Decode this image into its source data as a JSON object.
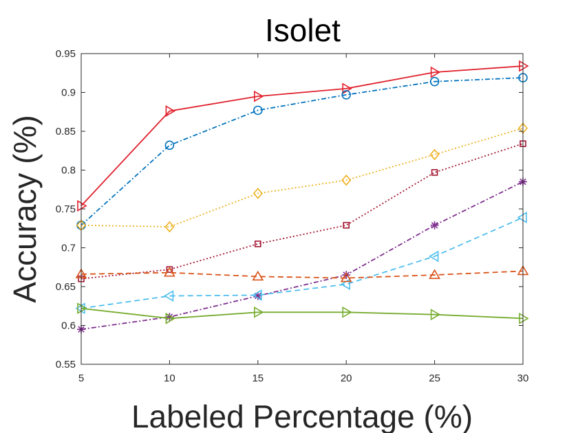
{
  "chart_data": {
    "type": "line",
    "title": "Isolet",
    "xlabel": "Labeled Percentage (%)",
    "ylabel": "Accuracy (%)",
    "x": [
      5,
      10,
      15,
      20,
      25,
      30
    ],
    "xlim": [
      5,
      30
    ],
    "ylim": [
      0.55,
      0.95
    ],
    "xticks": [
      "5",
      "10",
      "15",
      "20",
      "25",
      "30"
    ],
    "yticks": [
      "0.55",
      "0.6",
      "0.65",
      "0.7",
      "0.75",
      "0.8",
      "0.85",
      "0.9",
      "0.95"
    ],
    "grid": false,
    "legend": "none",
    "series": [
      {
        "color": "#e0202c",
        "dash": "",
        "marker": "triangle-right",
        "values": [
          0.754,
          0.876,
          0.895,
          0.905,
          0.926,
          0.934
        ]
      },
      {
        "color": "#0072bd",
        "dash": "7 3 2 3",
        "marker": "circle",
        "values": [
          0.729,
          0.832,
          0.877,
          0.897,
          0.914,
          0.919
        ]
      },
      {
        "color": "#edb120",
        "dash": "2 3",
        "marker": "diamond",
        "values": [
          0.729,
          0.727,
          0.77,
          0.787,
          0.82,
          0.854
        ]
      },
      {
        "color": "#a2142f",
        "dash": "2 3",
        "marker": "square",
        "values": [
          0.66,
          0.672,
          0.705,
          0.729,
          0.797,
          0.834
        ]
      },
      {
        "color": "#7e2f8e",
        "dash": "7 3 2 3",
        "marker": "star",
        "values": [
          0.595,
          0.611,
          0.638,
          0.665,
          0.729,
          0.785
        ]
      },
      {
        "color": "#4dbeee",
        "dash": "8 5",
        "marker": "triangle-left",
        "values": [
          0.622,
          0.638,
          0.639,
          0.653,
          0.689,
          0.739
        ]
      },
      {
        "color": "#d95319",
        "dash": "8 5",
        "marker": "triangle-up",
        "values": [
          0.666,
          0.668,
          0.663,
          0.661,
          0.665,
          0.67
        ]
      },
      {
        "color": "#77ac30",
        "dash": "",
        "marker": "triangle-right",
        "values": [
          0.622,
          0.609,
          0.617,
          0.617,
          0.614,
          0.609
        ]
      }
    ]
  }
}
